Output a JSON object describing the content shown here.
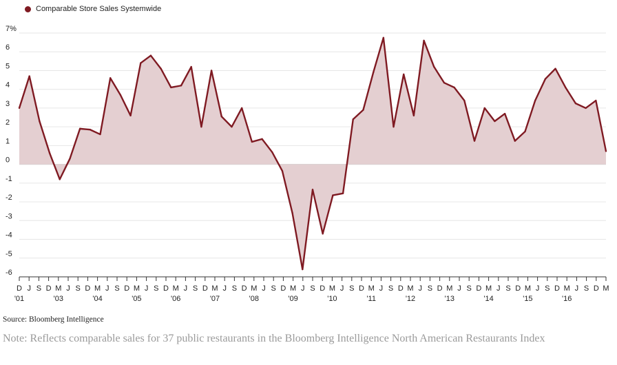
{
  "colors": {
    "series": "#7f1a22",
    "fill": "#e4cfd1",
    "grid": "#e6e6e6"
  },
  "legend": {
    "label": "Comparable Store Sales Systemwide"
  },
  "source": "Source: Bloomberg Intelligence",
  "note": "Note: Reflects comparable sales for 37 public restaurants in the Bloomberg Intelligence North American Restaurants Index",
  "chart_data": {
    "type": "area",
    "title": "",
    "xlabel": "",
    "ylabel": "",
    "ylim": [
      -6,
      7
    ],
    "y_ticks": [
      "7%",
      "6",
      "5",
      "4",
      "3",
      "2",
      "1",
      "0",
      "-1",
      "-2",
      "-3",
      "-4",
      "-5",
      "-6"
    ],
    "x_tick_months": [
      "D",
      "J",
      "S",
      "D",
      "M",
      "J",
      "S",
      "D",
      "M",
      "J",
      "S",
      "D",
      "M",
      "J",
      "S",
      "D",
      "M",
      "J",
      "S",
      "D",
      "M",
      "J",
      "S",
      "D",
      "M",
      "J",
      "S",
      "D",
      "M",
      "J",
      "S",
      "D",
      "M",
      "J",
      "S",
      "D",
      "M",
      "J",
      "S",
      "D",
      "M",
      "J",
      "S",
      "D",
      "M",
      "J",
      "S",
      "D",
      "M",
      "J",
      "S",
      "D",
      "M",
      "J",
      "S",
      "D",
      "M",
      "J",
      "S",
      "D",
      "M"
    ],
    "x_tick_years": [
      "'01",
      "",
      "",
      "",
      "'03",
      "",
      "",
      "",
      "'04",
      "",
      "",
      "",
      "'05",
      "",
      "",
      "",
      "'06",
      "",
      "",
      "",
      "'07",
      "",
      "",
      "",
      "'08",
      "",
      "",
      "",
      "'09",
      "",
      "",
      "",
      "'10",
      "",
      "",
      "",
      "'11",
      "",
      "",
      "",
      "'12",
      "",
      "",
      "",
      "'13",
      "",
      "",
      "",
      "'14",
      "",
      "",
      "",
      "'15",
      "",
      "",
      "",
      "'16",
      "",
      ""
    ],
    "grid": true,
    "legend_position": "top-left",
    "series": [
      {
        "name": "Comparable Store Sales Systemwide",
        "values": [
          3.0,
          4.7,
          2.3,
          0.6,
          -0.8,
          0.3,
          1.9,
          1.85,
          1.6,
          4.6,
          3.7,
          2.6,
          5.4,
          5.8,
          5.1,
          4.1,
          4.2,
          5.2,
          2.0,
          5.0,
          2.55,
          2.0,
          3.0,
          1.2,
          1.35,
          0.65,
          -0.35,
          -2.6,
          -5.6,
          -1.35,
          -3.7,
          -1.65,
          -1.55,
          2.4,
          2.9,
          4.9,
          6.75,
          2.0,
          4.8,
          2.6,
          6.6,
          5.2,
          4.35,
          4.1,
          3.4,
          1.25,
          3.0,
          2.3,
          2.7,
          1.25,
          1.75,
          3.4,
          4.55,
          5.1,
          4.1,
          3.25,
          3.0,
          3.4,
          0.7
        ]
      }
    ]
  }
}
